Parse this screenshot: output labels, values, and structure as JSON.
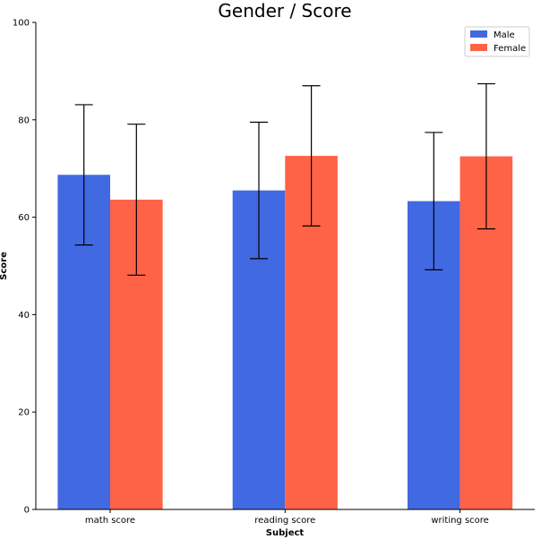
{
  "chart_data": {
    "type": "bar",
    "title": "Gender / Score",
    "xlabel": "Subject",
    "ylabel": "Score",
    "ylim": [
      0,
      100
    ],
    "yticks": [
      0,
      20,
      40,
      60,
      80,
      100
    ],
    "categories": [
      "math score",
      "reading score",
      "writing score"
    ],
    "series": [
      {
        "name": "Male",
        "color": "#4169e1",
        "values": [
          68.7,
          65.5,
          63.3
        ],
        "error": [
          14.4,
          14.0,
          14.1
        ]
      },
      {
        "name": "Female",
        "color": "#ff6347",
        "values": [
          63.6,
          72.6,
          72.5
        ],
        "error": [
          15.5,
          14.4,
          14.9
        ]
      }
    ],
    "legend_position": "top-right",
    "grid": false
  }
}
